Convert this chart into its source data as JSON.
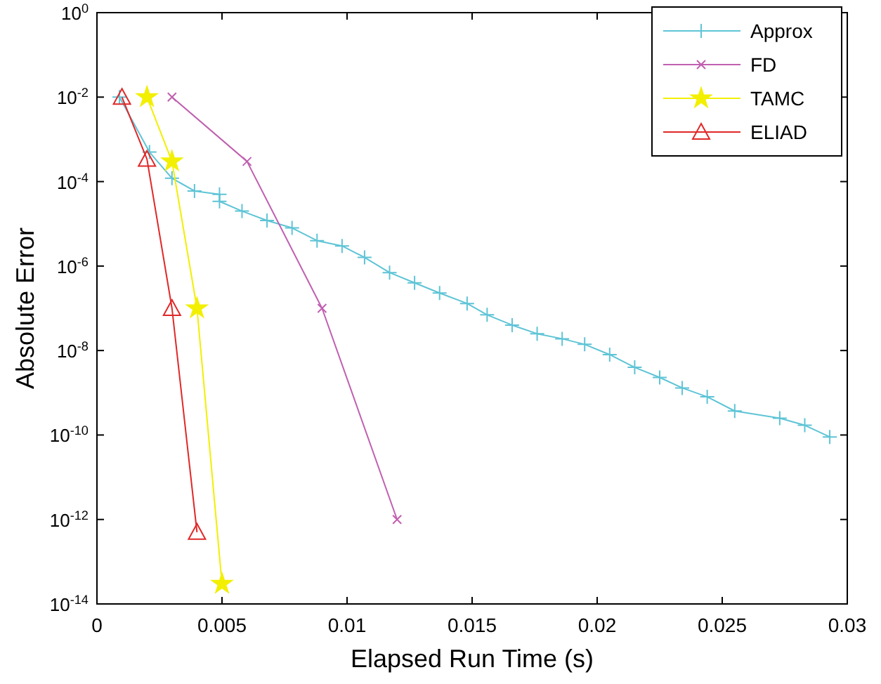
{
  "chart_data": {
    "type": "line",
    "xlabel": "Elapsed Run Time (s)",
    "ylabel": "Absolute Error",
    "log": "y",
    "xlim": [
      0,
      0.03
    ],
    "xticks": [
      0,
      0.005,
      0.01,
      0.015,
      0.02,
      0.025,
      0.03
    ],
    "ylim": [
      1e-14,
      1
    ],
    "yticks": [
      {
        "value": 1,
        "label": "10$^{0}$"
      },
      {
        "value": 0.01,
        "label": "10$^{-2}$"
      },
      {
        "value": 0.0001,
        "label": "10$^{-4}$"
      },
      {
        "value": 1e-06,
        "label": "10$^{-6}$"
      },
      {
        "value": 1e-08,
        "label": "10$^{-8}$"
      },
      {
        "value": 1e-10,
        "label": "10$^{-10}$"
      },
      {
        "value": 1e-12,
        "label": "10$^{-12}$"
      },
      {
        "value": 1e-14,
        "label": "10$^{-14}$"
      }
    ],
    "grid": false,
    "legend": "top right",
    "series": [
      {
        "name": "Approx",
        "color": "#5ec4d6",
        "marker": "plus",
        "x": [
          0.0009,
          0.0021,
          0.003,
          0.0039,
          0.0049,
          0.0049,
          0.0058,
          0.0068,
          0.0078,
          0.0088,
          0.0098,
          0.0107,
          0.0117,
          0.0127,
          0.0137,
          0.0148,
          0.0156,
          0.0166,
          0.0176,
          0.0186,
          0.0195,
          0.0205,
          0.0215,
          0.0225,
          0.0234,
          0.0244,
          0.0255,
          0.0273,
          0.0283,
          0.0293
        ],
        "values": [
          0.01,
          0.0005,
          0.00012,
          6e-05,
          5e-05,
          3.4e-05,
          2e-05,
          1.2e-05,
          8e-06,
          4e-06,
          3e-06,
          1.6e-06,
          7e-07,
          4e-07,
          2.3e-07,
          1.3e-07,
          7e-08,
          4e-08,
          2.5e-08,
          1.9e-08,
          1.4e-08,
          8e-09,
          4e-09,
          2.3e-09,
          1.3e-09,
          8e-10,
          3.7e-10,
          2.5e-10,
          1.7e-10,
          9e-11
        ]
      },
      {
        "name": "FD",
        "color": "#c060b0",
        "marker": "cross",
        "x": [
          0.003,
          0.006,
          0.009,
          0.012
        ],
        "values": [
          0.01,
          0.0003,
          1e-07,
          1e-12
        ]
      },
      {
        "name": "TAMC",
        "color": "#f2ef00",
        "marker": "star",
        "x": [
          0.002,
          0.003,
          0.004,
          0.005
        ],
        "values": [
          0.01,
          0.0003,
          1e-07,
          3e-14
        ]
      },
      {
        "name": "ELIAD",
        "color": "#e02828",
        "marker": "triangle",
        "x": [
          0.001,
          0.002,
          0.003,
          0.004
        ],
        "values": [
          0.01,
          0.00034,
          1e-07,
          5e-13
        ]
      }
    ]
  }
}
